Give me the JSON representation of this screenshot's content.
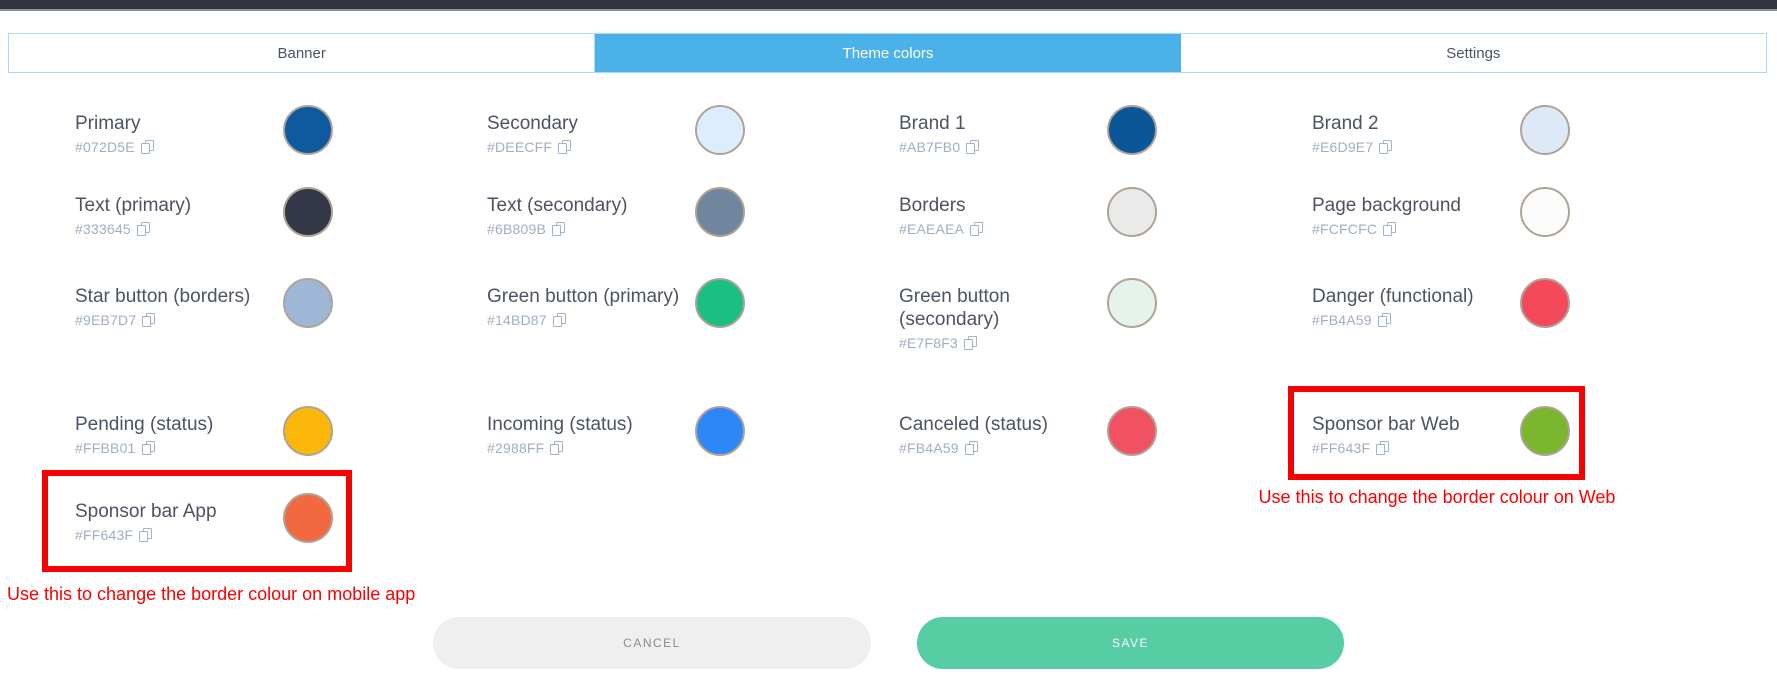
{
  "theme": {
    "topbar_bg": "#32333F",
    "topbar_line": "#8C909D",
    "tabbar_border": "#A9DBF5",
    "tab_active_bg": "#4BB2E9",
    "annotation_red": "#FB0000",
    "save_button_bg": "#57CDA4",
    "save_button_text": "#FFFFFF",
    "cancel_button_bg": "#EFEFEF",
    "cancel_button_text": "#8B8B8B",
    "hex_text": "#9FAEC4",
    "circle_border": "#AFA396"
  },
  "tabs": [
    {
      "label": "Banner",
      "active": false
    },
    {
      "label": "Theme colors",
      "active": true
    },
    {
      "label": "Settings",
      "active": false
    }
  ],
  "swatches": [
    {
      "name": "Primary",
      "hex": "#072D5E",
      "circle": "#0F5A9E",
      "row": 0,
      "col": 0
    },
    {
      "name": "Secondary",
      "hex": "#DEECFF",
      "circle": "#DEECFF",
      "row": 0,
      "col": 1
    },
    {
      "name": "Brand 1",
      "hex": "#AB7FB0",
      "circle": "#0B5697",
      "row": 0,
      "col": 2
    },
    {
      "name": "Brand 2",
      "hex": "#E6D9E7",
      "circle": "#DEE9F8",
      "row": 0,
      "col": 3
    },
    {
      "name": "Text (primary)",
      "hex": "#333645",
      "circle": "#343747",
      "row": 1,
      "col": 0
    },
    {
      "name": "Text (secondary)",
      "hex": "#6B809B",
      "circle": "#70869F",
      "row": 1,
      "col": 1
    },
    {
      "name": "Borders",
      "hex": "#EAEAEA",
      "circle": "#EAEAEA",
      "row": 1,
      "col": 2
    },
    {
      "name": "Page background",
      "hex": "#FCFCFC",
      "circle": "#FCFCFC",
      "row": 1,
      "col": 3
    },
    {
      "name": "Star button (borders)",
      "hex": "#9EB7D7",
      "circle": "#9EB7D7",
      "row": 2,
      "col": 0
    },
    {
      "name": "Green button (primary)",
      "hex": "#14BD87",
      "circle": "#1DBE83",
      "row": 2,
      "col": 1
    },
    {
      "name": "Green button (secondary)",
      "hex": "#E7F8F3",
      "circle": "#E6F3EC",
      "row": 2,
      "col": 2
    },
    {
      "name": "Danger (functional)",
      "hex": "#FB4A59",
      "circle": "#F4495B",
      "row": 2,
      "col": 3
    },
    {
      "name": "Pending (status)",
      "hex": "#FFBB01",
      "circle": "#FBB70A",
      "row": 3,
      "col": 0
    },
    {
      "name": "Incoming (status)",
      "hex": "#2988FF",
      "circle": "#2E87F7",
      "row": 3,
      "col": 1
    },
    {
      "name": "Canceled (status)",
      "hex": "#FB4A59",
      "circle": "#F25063",
      "row": 3,
      "col": 2
    },
    {
      "name": "Sponsor bar Web",
      "hex": "#FF643F",
      "circle": "#7AB62E",
      "row": 3,
      "col": 3
    },
    {
      "name": "Sponsor bar App",
      "hex": "#FF643F",
      "circle": "#F2683F",
      "row": 4,
      "col": 0
    }
  ],
  "annotations": {
    "app_note": "Use this to change the border colour on mobile app",
    "web_note": "Use this to change the border colour on Web"
  },
  "footer": {
    "cancel_label": "CANCEL",
    "save_label": "SAVE"
  }
}
